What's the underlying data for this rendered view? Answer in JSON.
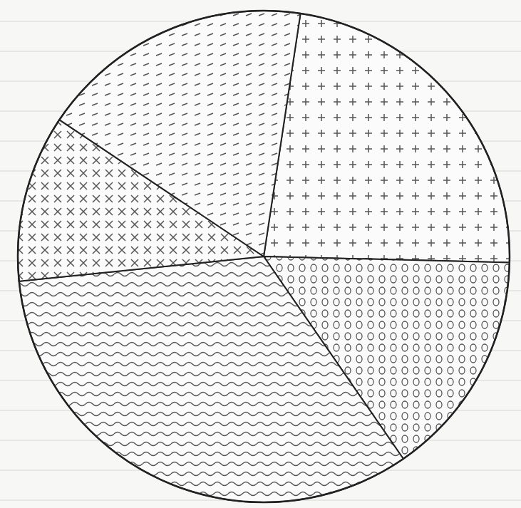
{
  "chart_data": {
    "type": "pie",
    "categories": [
      null,
      null,
      null,
      null,
      null
    ],
    "values": [
      23,
      15,
      33,
      11,
      18
    ]
  }
}
